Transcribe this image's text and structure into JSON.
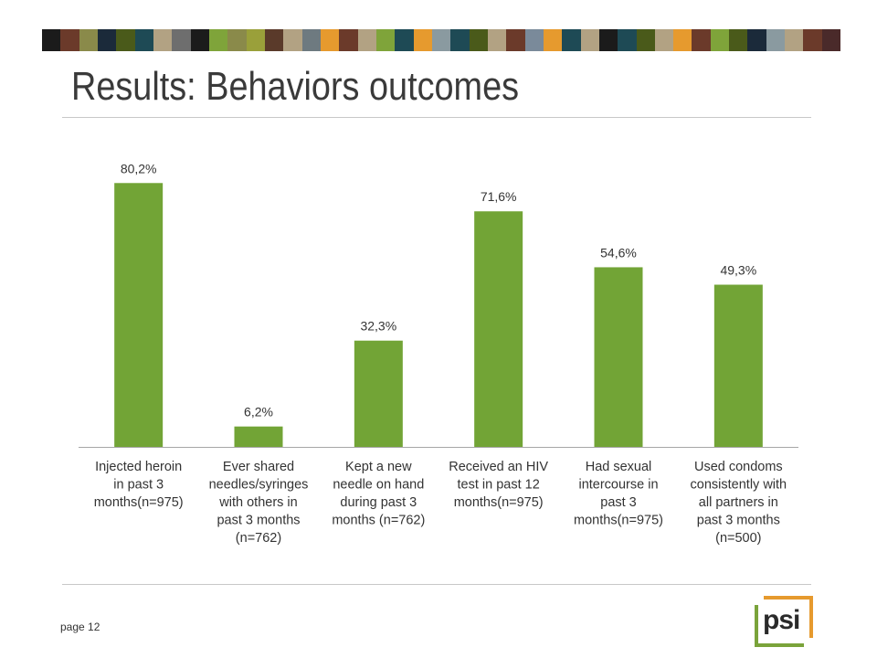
{
  "slide": {
    "title": "Results: Behaviors outcomes",
    "page_label": "page 12",
    "logo_text": "psi",
    "stripe_colors": [
      "#1b1b1b",
      "#6b3a2a",
      "#8a8a4a",
      "#1b2a3a",
      "#4a5a1a",
      "#1e4a55",
      "#b2a283",
      "#6e6e6e",
      "#1b1b1b",
      "#7fa43a",
      "#8a8a4a",
      "#9aa03a",
      "#5a3a2a",
      "#b2a283",
      "#6e7a80",
      "#e69a2e",
      "#6b3a2a",
      "#b2a283",
      "#7fa43a",
      "#1e4a55",
      "#e69a2e",
      "#8a9aa0",
      "#1e4a55",
      "#4a5a1a",
      "#b2a283",
      "#6b3a2a",
      "#7a8a9a",
      "#e69a2e",
      "#1e4a55",
      "#b2a283",
      "#1b1b1b",
      "#1e4a55",
      "#4a5a1a",
      "#b2a283",
      "#e69a2e",
      "#6b3a2a",
      "#7fa43a",
      "#4a5a1a",
      "#1b2a3a",
      "#8a9aa0",
      "#b2a283",
      "#6b3a2a",
      "#4a2a2a"
    ],
    "colors": {
      "bar": "#72a436",
      "axis": "#a6a6a6"
    }
  },
  "chart_data": {
    "type": "bar",
    "categories": [
      [
        "Injected heroin",
        "in past 3",
        "months(n=975)"
      ],
      [
        "Ever shared",
        "needles/syringes",
        "with others in",
        "past 3 months",
        "(n=762)"
      ],
      [
        "Kept a new",
        "needle on hand",
        "during past 3",
        "months (n=762)"
      ],
      [
        "Received an HIV",
        "test in past 12",
        "months(n=975)"
      ],
      [
        "Had sexual",
        "intercourse in",
        "past 3",
        "months(n=975)"
      ],
      [
        "Used condoms",
        "consistently with",
        "all partners in",
        "past 3 months",
        "(n=500)"
      ]
    ],
    "values": [
      80.2,
      6.2,
      32.3,
      71.6,
      54.6,
      49.3
    ],
    "data_labels": [
      "80,2%",
      "6,2%",
      "32,3%",
      "71,6%",
      "54,6%",
      "49,3%"
    ],
    "ylim": [
      0,
      100
    ],
    "grid": false,
    "legend": "none"
  }
}
